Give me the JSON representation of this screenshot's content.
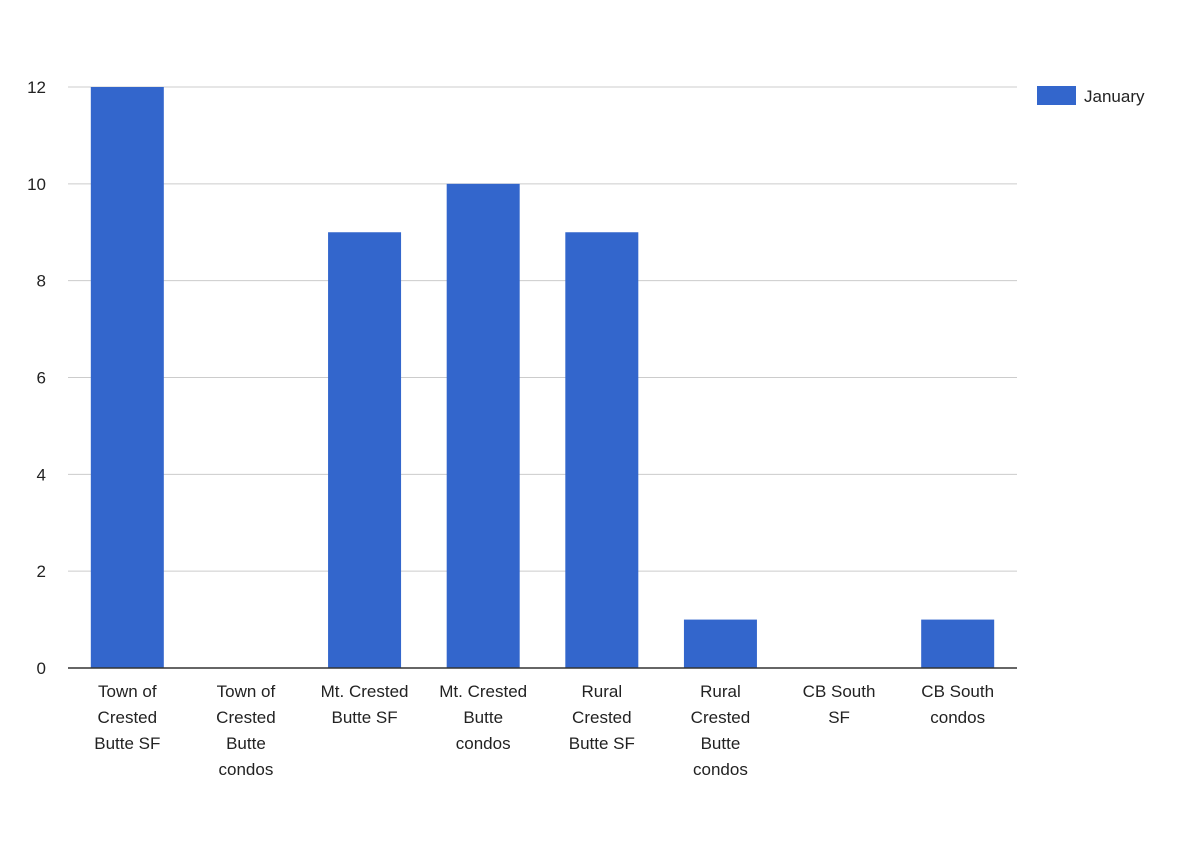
{
  "chart_data": {
    "type": "bar",
    "categories": [
      "Town of Crested Butte SF",
      "Town of Crested Butte condos",
      "Mt. Crested Butte SF",
      "Mt. Crested Butte condos",
      "Rural Crested Butte SF",
      "Rural Crested Butte condos",
      "CB South SF",
      "CB South condos"
    ],
    "category_label_lines": [
      [
        "Town of",
        "Crested",
        "Butte SF"
      ],
      [
        "Town of",
        "Crested",
        "Butte",
        "condos"
      ],
      [
        "Mt. Crested",
        "Butte SF"
      ],
      [
        "Mt. Crested",
        "Butte",
        "condos"
      ],
      [
        "Rural",
        "Crested",
        "Butte SF"
      ],
      [
        "Rural",
        "Crested",
        "Butte",
        "condos"
      ],
      [
        "CB South",
        "SF"
      ],
      [
        "CB South",
        "condos"
      ]
    ],
    "series": [
      {
        "name": "January",
        "values": [
          12,
          0,
          9,
          10,
          9,
          1,
          0,
          1
        ],
        "color": "#3366cc"
      }
    ],
    "title": "",
    "xlabel": "",
    "ylabel": "",
    "ylim": [
      0,
      12
    ],
    "yticks": [
      0,
      2,
      4,
      6,
      8,
      10,
      12
    ],
    "grid": true,
    "legend_position": "right-top",
    "colors": {
      "gridline": "#cccccc",
      "axis": "#333333"
    }
  }
}
